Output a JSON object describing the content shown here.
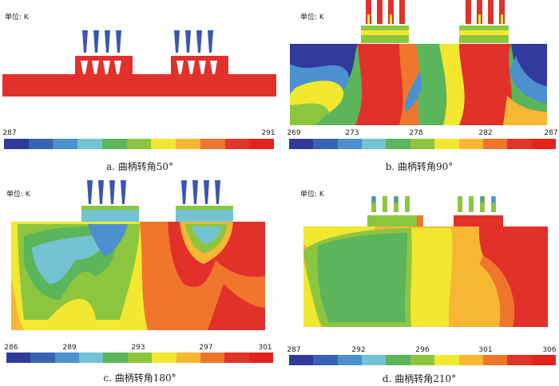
{
  "unit_label": "单位: K",
  "palette": [
    "#313a9c",
    "#3a62b4",
    "#4c90cf",
    "#73c3d3",
    "#5bb55a",
    "#8cc63f",
    "#f2e830",
    "#f7b733",
    "#f0762c",
    "#e0362a",
    "#e2231d"
  ],
  "panels": [
    {
      "id": "a",
      "caption": "a. 曲柄转角50°",
      "scale": [
        "287",
        "291"
      ]
    },
    {
      "id": "b",
      "caption": "b. 曲柄转角90°",
      "scale": [
        "269",
        "273",
        "278",
        "282",
        "287"
      ]
    },
    {
      "id": "c",
      "caption": "c. 曲柄转角180°",
      "scale": [
        "286",
        "289",
        "293",
        "297",
        "301"
      ]
    },
    {
      "id": "d",
      "caption": "d. 曲柄转角210°",
      "scale": [
        "287",
        "292",
        "296",
        "301",
        "306"
      ]
    }
  ]
}
